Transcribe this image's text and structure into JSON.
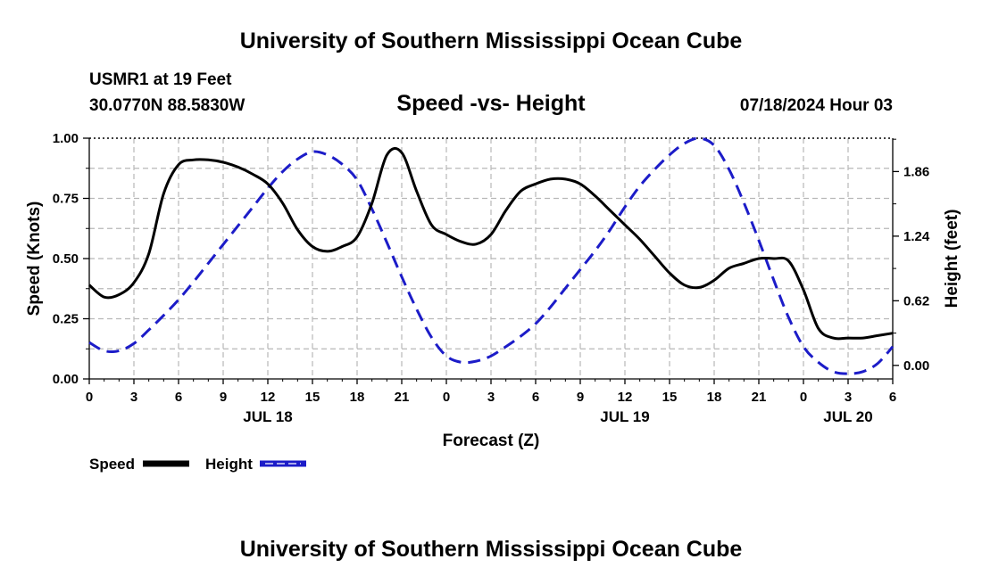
{
  "header": {
    "title": "University of Southern Mississippi Ocean Cube",
    "station": "USMR1 at 19 Feet",
    "location": "30.0770N  88.5830W",
    "chart_title": "Speed -vs- Height",
    "datetime": "07/18/2024 Hour 03"
  },
  "footer": {
    "title": "University of Southern Mississippi Ocean Cube"
  },
  "legend": {
    "speed_label": "Speed",
    "height_label": "Height"
  },
  "chart_data": {
    "type": "line",
    "title": "Speed -vs- Height",
    "xlabel": "Forecast (Z)",
    "ylabel": "Speed (Knots)",
    "y2label": "Height (feet)",
    "xlim": [
      0,
      54
    ],
    "ylim": [
      0,
      1.0
    ],
    "y2lim": [
      -0.13,
      2.18
    ],
    "x_ticks": [
      0,
      3,
      6,
      9,
      12,
      15,
      18,
      21,
      24,
      27,
      30,
      33,
      36,
      39,
      42,
      45,
      48,
      51,
      54
    ],
    "x_tick_labels": [
      "0",
      "3",
      "6",
      "9",
      "12",
      "15",
      "18",
      "21",
      "0",
      "3",
      "6",
      "9",
      "12",
      "15",
      "18",
      "21",
      "0",
      "3",
      "6"
    ],
    "y_ticks": [
      0.0,
      0.25,
      0.5,
      0.75,
      1.0
    ],
    "y_tick_labels": [
      "0.00",
      "0.25",
      "0.50",
      "0.75",
      "1.00"
    ],
    "y2_ticks": [
      0.0,
      0.62,
      1.24,
      1.86
    ],
    "y2_tick_labels": [
      "0.00",
      "0.62",
      "1.24",
      "1.86"
    ],
    "date_labels": [
      {
        "x": 12,
        "label": "JUL 18"
      },
      {
        "x": 36,
        "label": "JUL 19"
      },
      {
        "x": 51,
        "label": "JUL 20"
      }
    ],
    "grid": true,
    "legend_position": "bottom-left",
    "series": [
      {
        "name": "Speed",
        "axis": "left",
        "color": "#000000",
        "style": "solid",
        "x": [
          0,
          1,
          2,
          3,
          4,
          5,
          6,
          7,
          8,
          9,
          10,
          11,
          12,
          13,
          14,
          15,
          16,
          17,
          18,
          19,
          20,
          21,
          22,
          23,
          24,
          25,
          26,
          27,
          28,
          29,
          30,
          31,
          32,
          33,
          34,
          35,
          36,
          37,
          38,
          39,
          40,
          41,
          42,
          43,
          44,
          45,
          46,
          47,
          48,
          49,
          50,
          51,
          52,
          53,
          54
        ],
        "values": [
          0.39,
          0.34,
          0.35,
          0.4,
          0.52,
          0.77,
          0.89,
          0.91,
          0.91,
          0.9,
          0.88,
          0.85,
          0.81,
          0.73,
          0.62,
          0.55,
          0.53,
          0.55,
          0.59,
          0.73,
          0.93,
          0.94,
          0.78,
          0.64,
          0.6,
          0.57,
          0.56,
          0.6,
          0.7,
          0.78,
          0.81,
          0.83,
          0.83,
          0.81,
          0.76,
          0.7,
          0.64,
          0.58,
          0.51,
          0.44,
          0.39,
          0.38,
          0.41,
          0.46,
          0.48,
          0.5,
          0.5,
          0.49,
          0.37,
          0.21,
          0.17,
          0.17,
          0.17,
          0.18,
          0.19
        ]
      },
      {
        "name": "Height",
        "axis": "right",
        "color": "#1c1cc8",
        "style": "dashed",
        "x": [
          0,
          1,
          2,
          3,
          4,
          5,
          6,
          7,
          8,
          9,
          10,
          11,
          12,
          13,
          14,
          15,
          16,
          17,
          18,
          19,
          20,
          21,
          22,
          23,
          24,
          25,
          26,
          27,
          28,
          29,
          30,
          31,
          32,
          33,
          34,
          35,
          36,
          37,
          38,
          39,
          40,
          41,
          42,
          43,
          44,
          45,
          46,
          47,
          48,
          49,
          50,
          51,
          52,
          53,
          54
        ],
        "values": [
          0.22,
          0.14,
          0.14,
          0.21,
          0.34,
          0.48,
          0.63,
          0.8,
          0.98,
          1.16,
          1.34,
          1.52,
          1.7,
          1.86,
          1.98,
          2.05,
          2.02,
          1.93,
          1.78,
          1.5,
          1.18,
          0.85,
          0.54,
          0.27,
          0.09,
          0.03,
          0.04,
          0.09,
          0.18,
          0.28,
          0.4,
          0.56,
          0.74,
          0.92,
          1.1,
          1.3,
          1.52,
          1.72,
          1.88,
          2.02,
          2.13,
          2.18,
          2.11,
          1.88,
          1.56,
          1.2,
          0.82,
          0.46,
          0.18,
          0.03,
          -0.06,
          -0.08,
          -0.06,
          0.02,
          0.18
        ]
      }
    ]
  }
}
